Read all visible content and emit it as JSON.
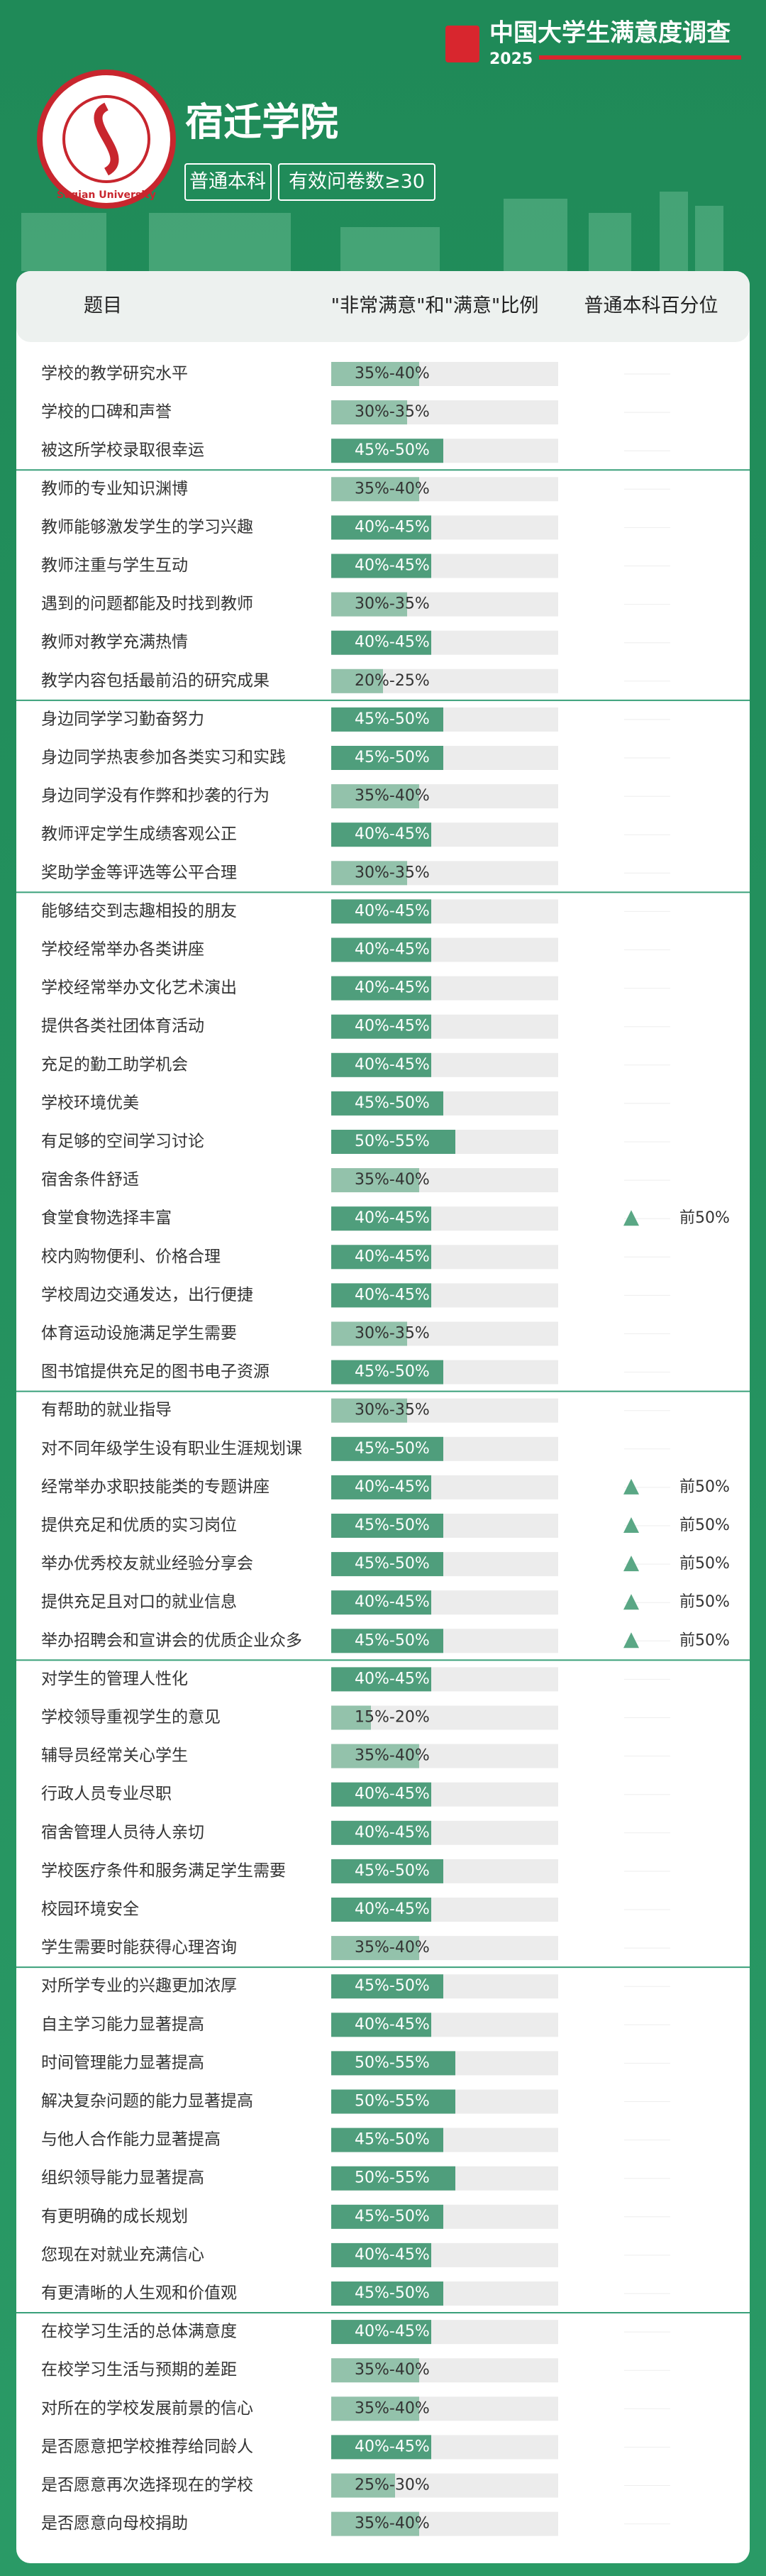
{
  "header": {
    "brand": "中国大学生满意度调查",
    "year": "2025",
    "logo_text": "Suqian University",
    "school": "宿迁学院",
    "tags": [
      "普通本科",
      "有效问卷数≥30"
    ]
  },
  "columns": [
    "题目",
    "\"非常满意\"和\"满意\"比例",
    "普通本科百分位"
  ],
  "groups": [
    {
      "rows": [
        {
          "label": "学校的教学研究水平",
          "ratio": "35%-40%"
        },
        {
          "label": "学校的口碑和声誉",
          "ratio": "30%-35%"
        },
        {
          "label": "被这所学校录取很幸运",
          "ratio": "45%-50%"
        }
      ]
    },
    {
      "rows": [
        {
          "label": "教师的专业知识渊博",
          "ratio": "35%-40%"
        },
        {
          "label": "教师能够激发学生的学习兴趣",
          "ratio": "40%-45%"
        },
        {
          "label": "教师注重与学生互动",
          "ratio": "40%-45%"
        },
        {
          "label": "遇到的问题都能及时找到教师",
          "ratio": "30%-35%"
        },
        {
          "label": "教师对教学充满热情",
          "ratio": "40%-45%"
        },
        {
          "label": "教学内容包括最前沿的研究成果",
          "ratio": "20%-25%"
        }
      ]
    },
    {
      "rows": [
        {
          "label": "身边同学学习勤奋努力",
          "ratio": "45%-50%"
        },
        {
          "label": "身边同学热衷参加各类实习和实践",
          "ratio": "45%-50%"
        },
        {
          "label": "身边同学没有作弊和抄袭的行为",
          "ratio": "35%-40%"
        },
        {
          "label": "教师评定学生成绩客观公正",
          "ratio": "40%-45%"
        },
        {
          "label": "奖助学金等评选等公平合理",
          "ratio": "30%-35%"
        }
      ]
    },
    {
      "rows": [
        {
          "label": "能够结交到志趣相投的朋友",
          "ratio": "40%-45%"
        },
        {
          "label": "学校经常举办各类讲座",
          "ratio": "40%-45%"
        },
        {
          "label": "学校经常举办文化艺术演出",
          "ratio": "40%-45%"
        },
        {
          "label": "提供各类社团体育活动",
          "ratio": "40%-45%"
        },
        {
          "label": "充足的勤工助学机会",
          "ratio": "40%-45%"
        },
        {
          "label": "学校环境优美",
          "ratio": "45%-50%"
        },
        {
          "label": "有足够的空间学习讨论",
          "ratio": "50%-55%"
        },
        {
          "label": "宿舍条件舒适",
          "ratio": "35%-40%"
        },
        {
          "label": "食堂食物选择丰富",
          "ratio": "40%-45%",
          "percentile": "前50%"
        },
        {
          "label": "校内购物便利、价格合理",
          "ratio": "40%-45%"
        },
        {
          "label": "学校周边交通发达，出行便捷",
          "ratio": "40%-45%"
        },
        {
          "label": "体育运动设施满足学生需要",
          "ratio": "30%-35%"
        },
        {
          "label": "图书馆提供充足的图书电子资源",
          "ratio": "45%-50%"
        }
      ]
    },
    {
      "rows": [
        {
          "label": "有帮助的就业指导",
          "ratio": "30%-35%"
        },
        {
          "label": "对不同年级学生设有职业生涯规划课",
          "ratio": "45%-50%"
        },
        {
          "label": "经常举办求职技能类的专题讲座",
          "ratio": "40%-45%",
          "percentile": "前50%"
        },
        {
          "label": "提供充足和优质的实习岗位",
          "ratio": "45%-50%",
          "percentile": "前50%"
        },
        {
          "label": "举办优秀校友就业经验分享会",
          "ratio": "45%-50%",
          "percentile": "前50%"
        },
        {
          "label": "提供充足且对口的就业信息",
          "ratio": "40%-45%",
          "percentile": "前50%"
        },
        {
          "label": "举办招聘会和宣讲会的优质企业众多",
          "ratio": "45%-50%",
          "percentile": "前50%"
        }
      ]
    },
    {
      "rows": [
        {
          "label": "对学生的管理人性化",
          "ratio": "40%-45%"
        },
        {
          "label": "学校领导重视学生的意见",
          "ratio": "15%-20%"
        },
        {
          "label": "辅导员经常关心学生",
          "ratio": "35%-40%"
        },
        {
          "label": "行政人员专业尽职",
          "ratio": "40%-45%"
        },
        {
          "label": "宿舍管理人员待人亲切",
          "ratio": "40%-45%"
        },
        {
          "label": "学校医疗条件和服务满足学生需要",
          "ratio": "45%-50%"
        },
        {
          "label": "校园环境安全",
          "ratio": "40%-45%"
        },
        {
          "label": "学生需要时能获得心理咨询",
          "ratio": "35%-40%"
        }
      ]
    },
    {
      "rows": [
        {
          "label": "对所学专业的兴趣更加浓厚",
          "ratio": "45%-50%"
        },
        {
          "label": "自主学习能力显著提高",
          "ratio": "40%-45%"
        },
        {
          "label": "时间管理能力显著提高",
          "ratio": "50%-55%"
        },
        {
          "label": "解决复杂问题的能力显著提高",
          "ratio": "50%-55%"
        },
        {
          "label": "与他人合作能力显著提高",
          "ratio": "45%-50%"
        },
        {
          "label": "组织领导能力显著提高",
          "ratio": "50%-55%"
        },
        {
          "label": "有更明确的成长规划",
          "ratio": "45%-50%"
        },
        {
          "label": "您现在对就业充满信心",
          "ratio": "40%-45%"
        },
        {
          "label": "有更清晰的人生观和价值观",
          "ratio": "45%-50%"
        }
      ]
    },
    {
      "rows": [
        {
          "label": "在校学习生活的总体满意度",
          "ratio": "40%-45%"
        },
        {
          "label": "在校学习生活与预期的差距",
          "ratio": "35%-40%"
        },
        {
          "label": "对所在的学校发展前景的信心",
          "ratio": "35%-40%"
        },
        {
          "label": "是否愿意把学校推荐给同龄人",
          "ratio": "40%-45%"
        },
        {
          "label": "是否愿意再次选择现在的学校",
          "ratio": "25%-30%"
        },
        {
          "label": "是否愿意向母校捐助",
          "ratio": "35%-40%"
        }
      ]
    }
  ]
}
